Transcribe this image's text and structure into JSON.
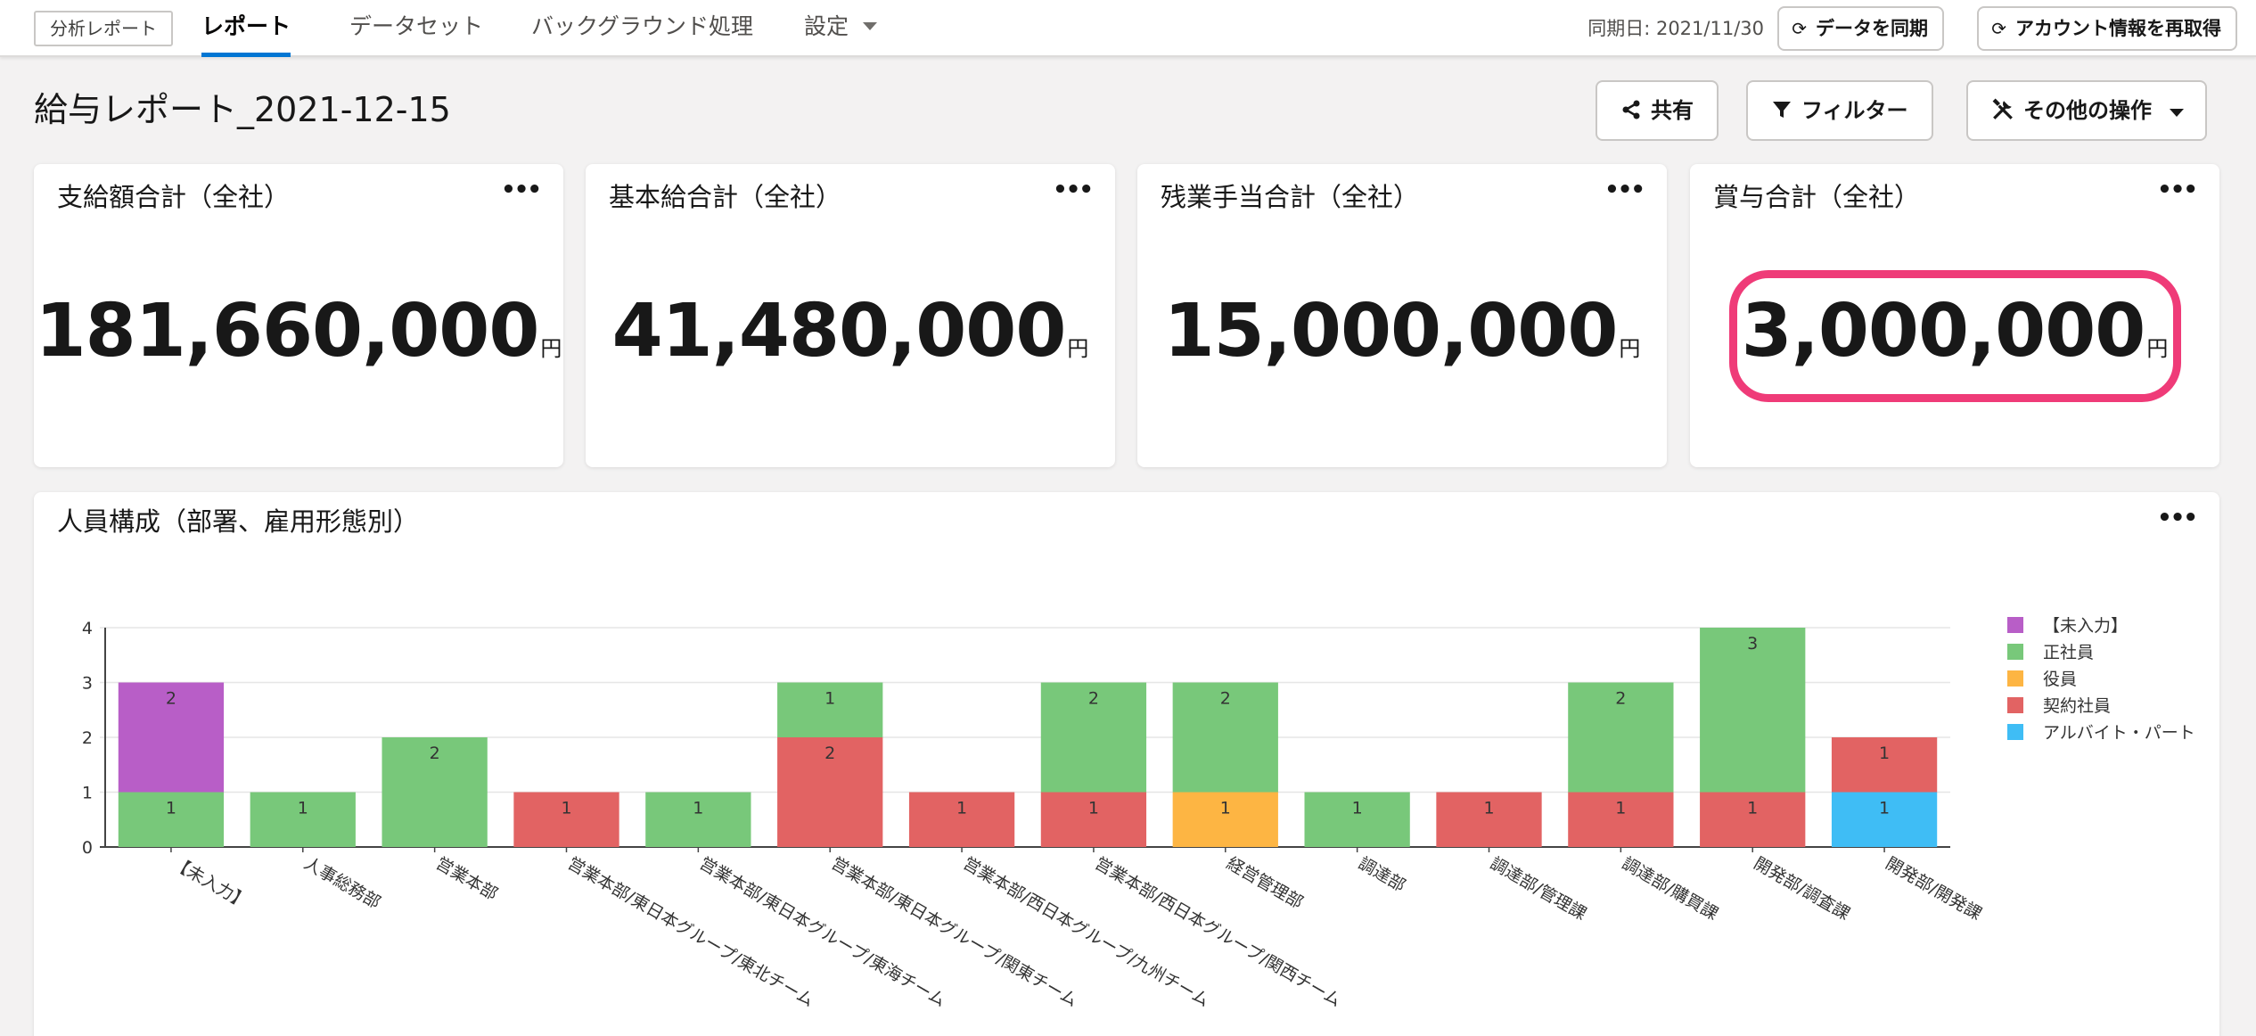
{
  "nav": {
    "app_badge": "分析レポート",
    "tabs": [
      {
        "label": "レポート"
      },
      {
        "label": "データセット"
      },
      {
        "label": "バックグラウンド処理"
      },
      {
        "label": "設定"
      }
    ],
    "sync_date": "同期日: 2021/11/30",
    "sync_button": "データを同期",
    "refetch_button": "アカウント情報を再取得"
  },
  "page": {
    "title": "給与レポート_2021-12-15",
    "share": "共有",
    "filter": "フィルター",
    "other_actions": "その他の操作"
  },
  "kpis": [
    {
      "title": "支給額合計（全社）",
      "value": "181,660,000",
      "unit": "円"
    },
    {
      "title": "基本給合計（全社）",
      "value": "41,480,000",
      "unit": "円"
    },
    {
      "title": "残業手当合計（全社）",
      "value": "15,000,000",
      "unit": "円"
    },
    {
      "title": "賞与合計（全社）",
      "value": "3,000,000",
      "unit": "円"
    }
  ],
  "chart_data": {
    "type": "bar",
    "stacked": true,
    "title": "人員構成（部署、雇用形態別）",
    "xlabel": "",
    "ylabel": "",
    "ylim": [
      0,
      4
    ],
    "yticks": [
      0,
      1,
      2,
      3,
      4
    ],
    "grid": true,
    "legend_position": "right",
    "categories": [
      "【未入力】",
      "人事総務部",
      "営業本部",
      "営業本部/東日本グループ/東北チーム",
      "営業本部/東日本グループ/東海チーム",
      "営業本部/東日本グループ/関東チーム",
      "営業本部/西日本グループ/九州チーム",
      "営業本部/西日本グループ/関西チーム",
      "経営管理部",
      "調達部",
      "調達部/管理課",
      "調達部/購買課",
      "開発部/調査課",
      "開発部/開発課"
    ],
    "series": [
      {
        "name": "アルバイト・パート",
        "color": "#3fbdf5",
        "values": [
          0,
          0,
          0,
          0,
          0,
          0,
          0,
          0,
          0,
          0,
          0,
          0,
          0,
          1
        ]
      },
      {
        "name": "契約社員",
        "color": "#e26363",
        "values": [
          0,
          0,
          0,
          1,
          0,
          2,
          1,
          1,
          0,
          0,
          1,
          1,
          1,
          1
        ]
      },
      {
        "name": "役員",
        "color": "#fdb543",
        "values": [
          0,
          0,
          0,
          0,
          0,
          0,
          0,
          0,
          1,
          0,
          0,
          0,
          0,
          0
        ]
      },
      {
        "name": "正社員",
        "color": "#78c87a",
        "values": [
          1,
          1,
          2,
          0,
          1,
          1,
          0,
          2,
          2,
          1,
          0,
          2,
          3,
          0
        ]
      },
      {
        "name": "【未入力】",
        "color": "#b85ec7",
        "values": [
          2,
          0,
          0,
          0,
          0,
          0,
          0,
          0,
          0,
          0,
          0,
          0,
          0,
          0
        ]
      }
    ],
    "legend_order": [
      "【未入力】",
      "正社員",
      "役員",
      "契約社員",
      "アルバイト・パート"
    ]
  }
}
